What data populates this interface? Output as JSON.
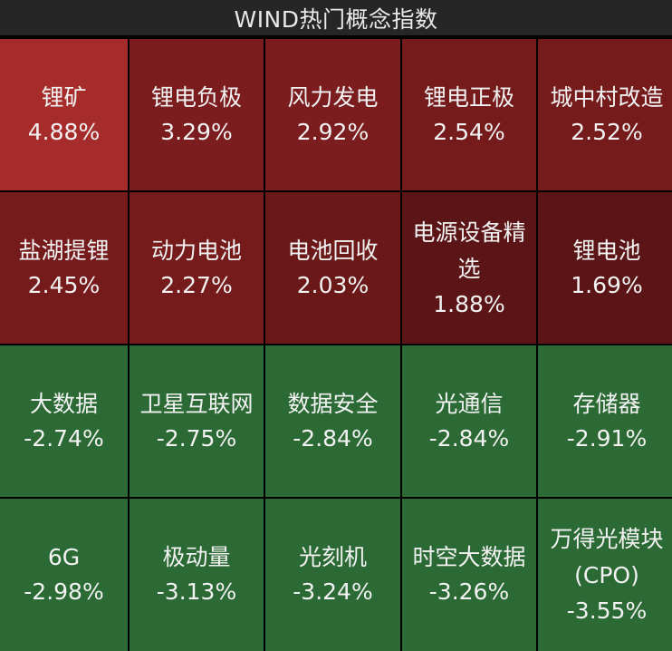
{
  "header": {
    "title": "WIND热门概念指数"
  },
  "colors": {
    "strong_up": "#a62c2b",
    "mid_up": "#7b1c1e",
    "weak_up": "#5b1516",
    "down": "#2c6a35"
  },
  "tiles": [
    {
      "name": "锂矿",
      "pct": "4.88%"
    },
    {
      "name": "锂电负极",
      "pct": "3.29%"
    },
    {
      "name": "风力发电",
      "pct": "2.92%"
    },
    {
      "name": "锂电正极",
      "pct": "2.54%"
    },
    {
      "name": "城中村改造",
      "pct": "2.52%"
    },
    {
      "name": "盐湖提锂",
      "pct": "2.45%"
    },
    {
      "name": "动力电池",
      "pct": "2.27%"
    },
    {
      "name": "电池回收",
      "pct": "2.03%"
    },
    {
      "name": "电源设备精选",
      "pct": "1.88%"
    },
    {
      "name": "锂电池",
      "pct": "1.69%"
    },
    {
      "name": "大数据",
      "pct": "-2.74%"
    },
    {
      "name": "卫星互联网",
      "pct": "-2.75%"
    },
    {
      "name": "数据安全",
      "pct": "-2.84%"
    },
    {
      "name": "光通信",
      "pct": "-2.84%"
    },
    {
      "name": "存储器",
      "pct": "-2.91%"
    },
    {
      "name": "6G",
      "pct": "-2.98%"
    },
    {
      "name": "极动量",
      "pct": "-3.13%"
    },
    {
      "name": "光刻机",
      "pct": "-3.24%"
    },
    {
      "name": "时空大数据",
      "pct": "-3.26%"
    },
    {
      "name": "万得光模块(CPO)",
      "pct": "-3.55%"
    }
  ]
}
